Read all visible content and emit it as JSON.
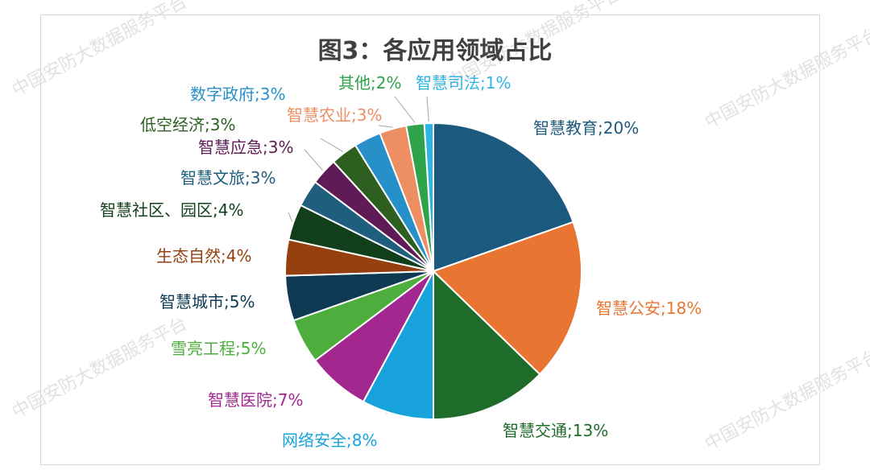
{
  "watermark": "中国安防大数据服务平台",
  "chart_data": {
    "type": "pie",
    "title": "图3：各应用领域占比",
    "label_separator": ";",
    "slices": [
      {
        "label": "智慧教育",
        "value": 20,
        "display": "20%",
        "color": "#1b5a7e"
      },
      {
        "label": "智慧公安",
        "value": 18,
        "display": "18%",
        "color": "#e97532"
      },
      {
        "label": "智慧交通",
        "value": 13,
        "display": "13%",
        "color": "#1f6b2a"
      },
      {
        "label": "网络安全",
        "value": 8,
        "display": "8%",
        "color": "#19a3dc"
      },
      {
        "label": "智慧医院",
        "value": 7,
        "display": "7%",
        "color": "#a2288f"
      },
      {
        "label": "雪亮工程",
        "value": 5,
        "display": "5%",
        "color": "#4dae3e"
      },
      {
        "label": "智慧城市",
        "value": 5,
        "display": "5%",
        "color": "#0e3953"
      },
      {
        "label": "生态自然",
        "value": 4,
        "display": "4%",
        "color": "#96400f"
      },
      {
        "label": "智慧社区、园区",
        "value": 4,
        "display": "4%",
        "color": "#123f1b"
      },
      {
        "label": "智慧文旅",
        "value": 3,
        "display": "3%",
        "color": "#1f5e7d"
      },
      {
        "label": "智慧应急",
        "value": 3,
        "display": "3%",
        "color": "#5e1b55"
      },
      {
        "label": "低空经济",
        "value": 3,
        "display": "3%",
        "color": "#2d5f21"
      },
      {
        "label": "数字政府",
        "value": 3,
        "display": "3%",
        "color": "#2890c8"
      },
      {
        "label": "智慧农业",
        "value": 3,
        "display": "3%",
        "color": "#ee8f63"
      },
      {
        "label": "其他",
        "value": 2,
        "display": "2%",
        "color": "#2ea34a"
      },
      {
        "label": "智慧司法",
        "value": 1,
        "display": "1%",
        "color": "#2fb4e6"
      }
    ]
  }
}
